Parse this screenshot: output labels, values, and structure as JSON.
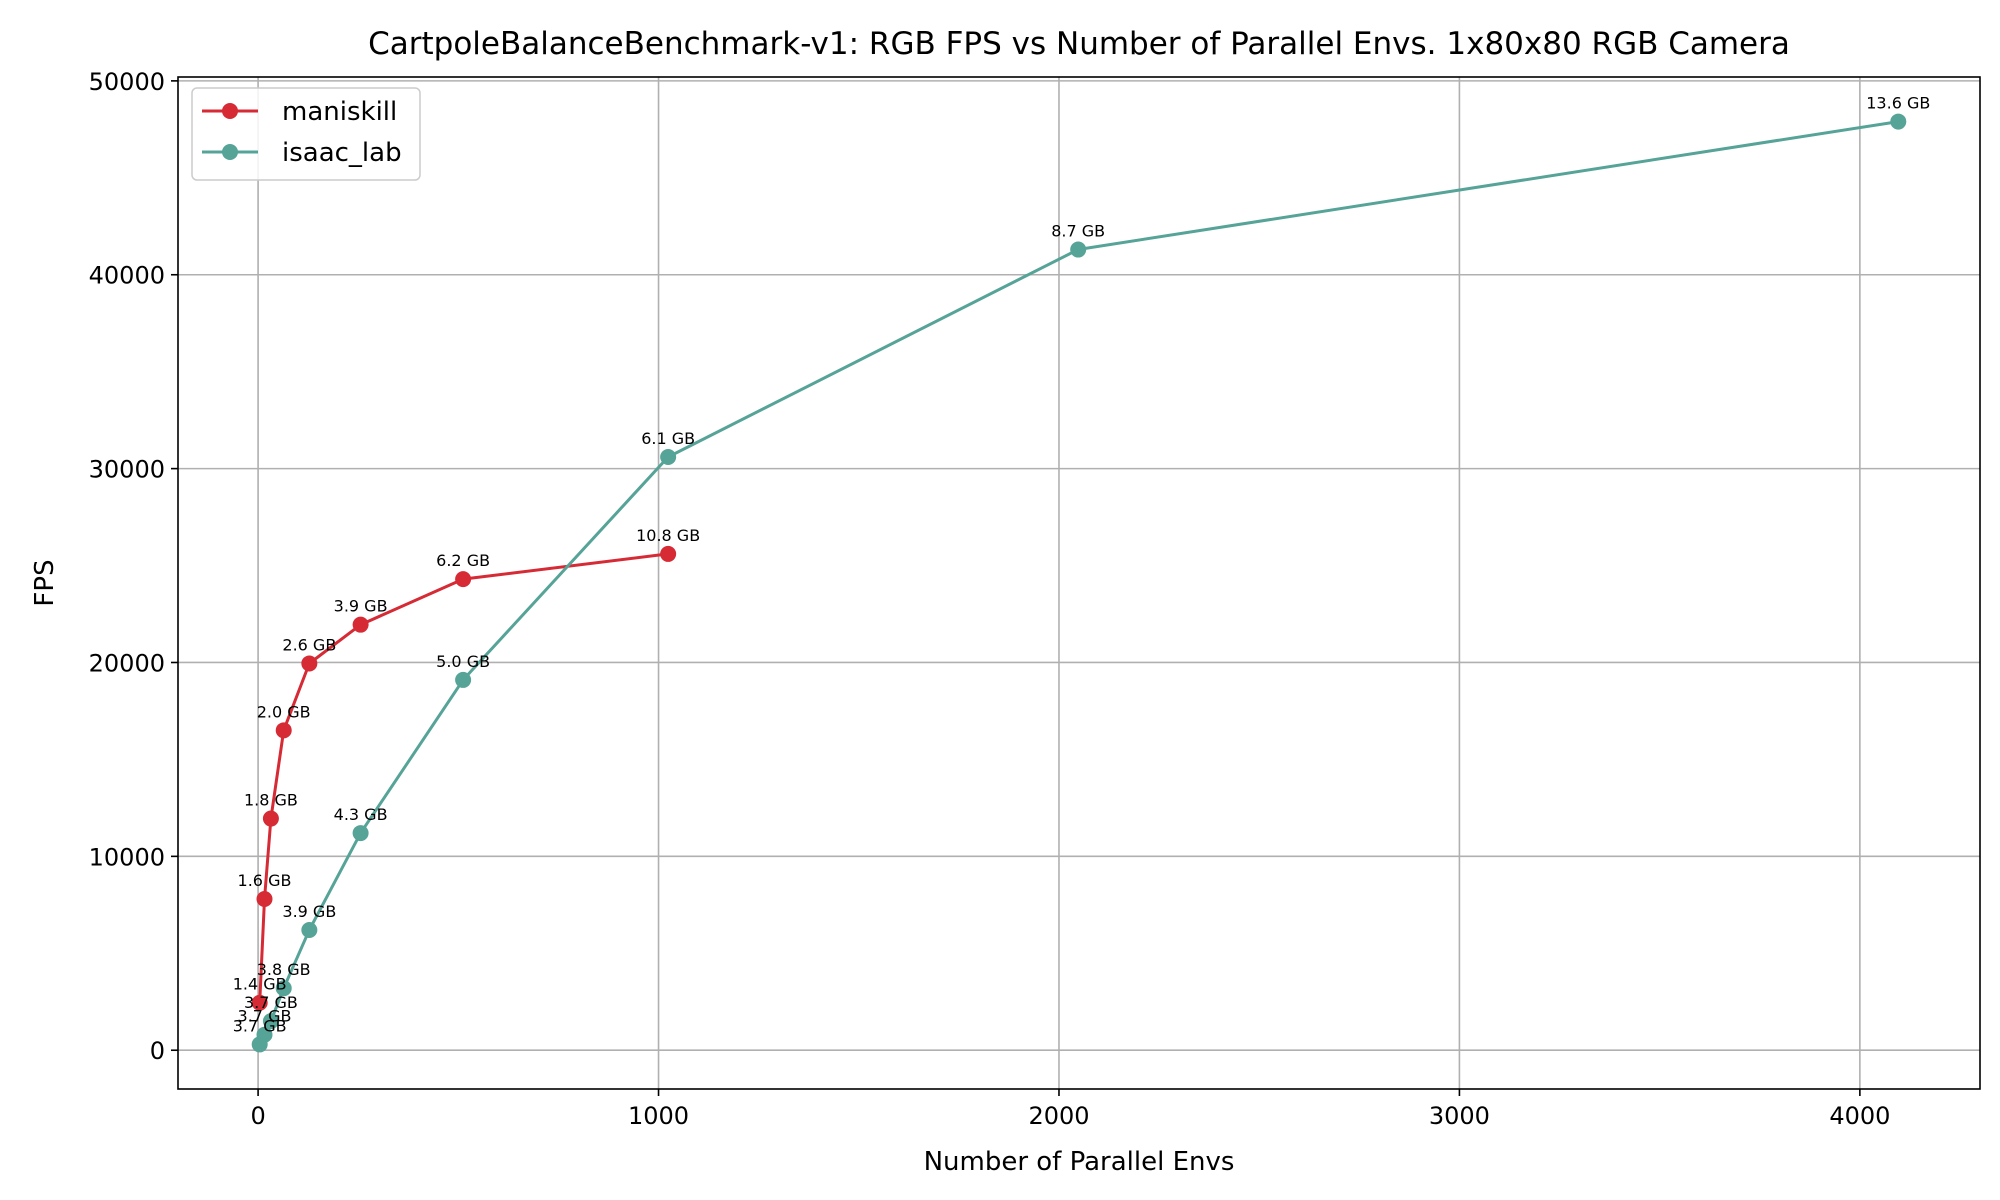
{
  "chart_data": {
    "type": "line",
    "title": "CartpoleBalanceBenchmark-v1: RGB FPS vs Number of Parallel Envs. 1x80x80 RGB Camera",
    "xlabel": "Number of Parallel Envs",
    "ylabel": "FPS",
    "xlim": [
      -200,
      4300
    ],
    "ylim": [
      -2000,
      50200
    ],
    "xticks": [
      0,
      1000,
      2000,
      3000,
      4000
    ],
    "yticks": [
      0,
      10000,
      20000,
      30000,
      40000,
      50000
    ],
    "grid": true,
    "legend_position": "top-left",
    "series": [
      {
        "name": "maniskill",
        "color": "#d62a35",
        "x": [
          4,
          16,
          32,
          64,
          128,
          256,
          512,
          1024
        ],
        "y": [
          2450,
          7800,
          11950,
          16500,
          19950,
          21950,
          24300,
          25600
        ],
        "labels": [
          "1.4 GB",
          "1.6 GB",
          "1.8 GB",
          "2.0 GB",
          "2.6 GB",
          "3.9 GB",
          "6.2 GB",
          "10.8 GB"
        ]
      },
      {
        "name": "isaac_lab",
        "color": "#56a397",
        "x": [
          4,
          16,
          32,
          64,
          128,
          256,
          512,
          1024,
          2048,
          4096
        ],
        "y": [
          300,
          800,
          1500,
          3200,
          6200,
          11200,
          19100,
          30600,
          41300,
          47900
        ],
        "labels": [
          "3.7 GB",
          "3.7 GB",
          "3.7 GB",
          "3.8 GB",
          "3.9 GB",
          "4.3 GB",
          "5.0 GB",
          "6.1 GB",
          "8.7 GB",
          "13.6 GB"
        ]
      }
    ]
  }
}
